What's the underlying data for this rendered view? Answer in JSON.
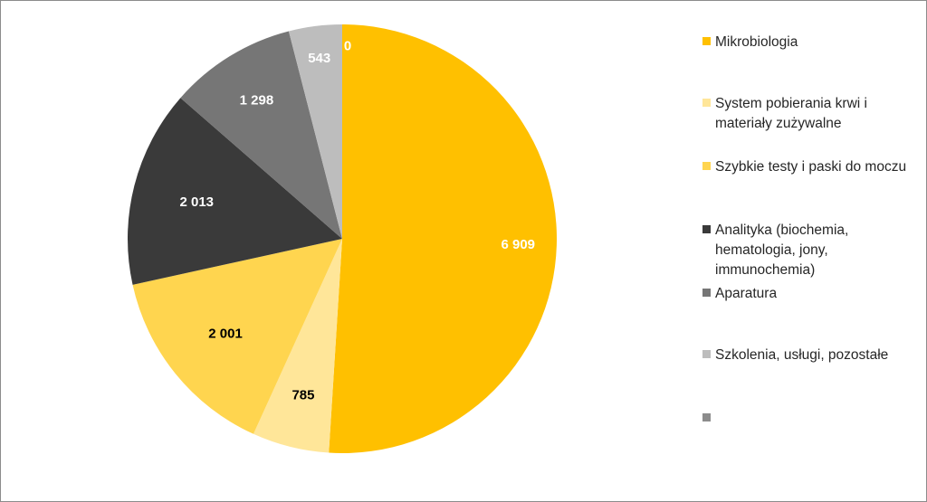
{
  "chart_data": {
    "type": "pie",
    "start_angle_deg": 0,
    "direction": "clockwise",
    "slices": [
      {
        "label": "Mikrobiologia",
        "value": 6909,
        "display": "6 909",
        "color": "#FFC000",
        "label_color": "#ffffff"
      },
      {
        "label": "System pobierania krwi i materiały zużywalne",
        "value": 785,
        "display": "785",
        "color": "#FFE699",
        "label_color": "#000000"
      },
      {
        "label": "Szybkie testy i paski do moczu",
        "value": 2001,
        "display": "2 001",
        "color": "#FFD54F",
        "label_color": "#000000"
      },
      {
        "label": "Analityka (biochemia, hematologia, jony, immunochemia)",
        "value": 2013,
        "display": "2 013",
        "color": "#3A3A3A",
        "label_color": "#ffffff"
      },
      {
        "label": "Aparatura",
        "value": 1298,
        "display": "1 298",
        "color": "#767676",
        "label_color": "#ffffff"
      },
      {
        "label": "Szkolenia, usługi, pozostałe",
        "value": 543,
        "display": "543",
        "color": "#BDBDBD",
        "label_color": "#ffffff"
      },
      {
        "label": "",
        "value": 0,
        "display": "0",
        "color": "#8C8C8C",
        "label_color": "#ffffff"
      }
    ],
    "legend_position": "right"
  }
}
